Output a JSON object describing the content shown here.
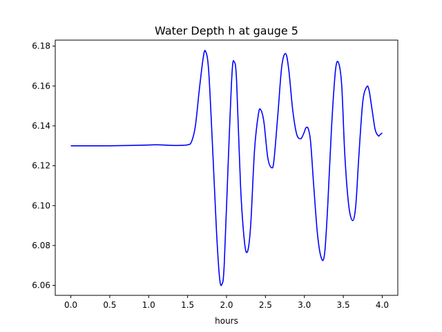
{
  "chart_data": {
    "type": "line",
    "title": "Water Depth h at gauge 5",
    "xlabel": "hours",
    "ylabel": "",
    "xlim": [
      -0.2,
      4.2
    ],
    "ylim": [
      6.055,
      6.183
    ],
    "xticks": [
      0.0,
      0.5,
      1.0,
      1.5,
      2.0,
      2.5,
      3.0,
      3.5,
      4.0
    ],
    "xtick_labels": [
      "0.0",
      "0.5",
      "1.0",
      "1.5",
      "2.0",
      "2.5",
      "3.0",
      "3.5",
      "4.0"
    ],
    "yticks": [
      6.06,
      6.08,
      6.1,
      6.12,
      6.14,
      6.16,
      6.18
    ],
    "ytick_labels": [
      "6.06",
      "6.08",
      "6.10",
      "6.12",
      "6.14",
      "6.16",
      "6.18"
    ],
    "grid": false,
    "series": [
      {
        "color": "#0000ff",
        "x": [
          0.0,
          0.5,
          0.8,
          1.0,
          1.1,
          1.2,
          1.3,
          1.4,
          1.5,
          1.55,
          1.6,
          1.65,
          1.7,
          1.73,
          1.77,
          1.82,
          1.87,
          1.91,
          1.94,
          1.97,
          2.02,
          2.07,
          2.1,
          2.13,
          2.18,
          2.23,
          2.27,
          2.31,
          2.36,
          2.41,
          2.44,
          2.48,
          2.53,
          2.58,
          2.61,
          2.66,
          2.71,
          2.76,
          2.8,
          2.85,
          2.9,
          2.95,
          2.99,
          3.02,
          3.05,
          3.08,
          3.12,
          3.17,
          3.22,
          3.26,
          3.3,
          3.35,
          3.4,
          3.44,
          3.48,
          3.52,
          3.57,
          3.62,
          3.66,
          3.7,
          3.75,
          3.8,
          3.83,
          3.87,
          3.91,
          3.95,
          3.97,
          4.0
        ],
        "y": [
          6.13,
          6.13,
          6.1302,
          6.1304,
          6.1305,
          6.1304,
          6.1302,
          6.1302,
          6.1305,
          6.132,
          6.14,
          6.158,
          6.174,
          6.1775,
          6.168,
          6.13,
          6.088,
          6.064,
          6.0605,
          6.07,
          6.12,
          6.166,
          6.172,
          6.162,
          6.11,
          6.082,
          6.077,
          6.09,
          6.128,
          6.146,
          6.148,
          6.142,
          6.124,
          6.119,
          6.123,
          6.146,
          6.17,
          6.1762,
          6.168,
          6.148,
          6.136,
          6.1335,
          6.136,
          6.139,
          6.1385,
          6.132,
          6.11,
          6.085,
          6.0735,
          6.076,
          6.1,
          6.14,
          6.168,
          6.1715,
          6.16,
          6.125,
          6.1,
          6.0925,
          6.1,
          6.125,
          6.152,
          6.1595,
          6.158,
          6.148,
          6.138,
          6.135,
          6.1355,
          6.1365
        ]
      }
    ]
  }
}
